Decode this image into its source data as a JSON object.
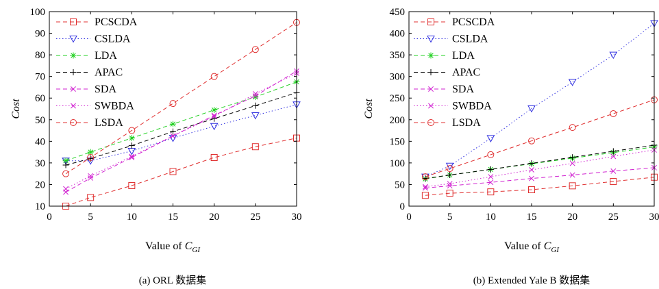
{
  "chart_data": [
    {
      "type": "line",
      "caption": "(a) ORL 数据集",
      "xlabel": "Value of ",
      "xlabel_sub": "GI",
      "xlabel_var": "C",
      "ylabel": "Cost",
      "xlim": [
        0,
        30
      ],
      "ylim": [
        10,
        100
      ],
      "xticks": [
        "0",
        "5",
        "10",
        "15",
        "20",
        "25",
        "30"
      ],
      "yticks": [
        "10",
        "20",
        "30",
        "40",
        "50",
        "60",
        "70",
        "80",
        "90",
        "100"
      ],
      "legend_position": "top-left",
      "x": [
        2,
        5,
        10,
        15,
        20,
        25,
        30
      ],
      "series": [
        {
          "name": "PCSCDA",
          "color": "#e03030",
          "dash": "6,4",
          "marker": "square",
          "values": [
            10,
            14,
            19.5,
            26,
            32.5,
            37.5,
            41.5
          ]
        },
        {
          "name": "CSLDA",
          "color": "#3030e0",
          "dash": "1.5,3",
          "marker": "triangle-down",
          "values": [
            31,
            31,
            35.5,
            41.5,
            47,
            52,
            57
          ]
        },
        {
          "name": "LDA",
          "color": "#20d020",
          "dash": "6,4",
          "marker": "star",
          "values": [
            31,
            35,
            41.5,
            48,
            54.5,
            60.5,
            67.5
          ]
        },
        {
          "name": "APAC",
          "color": "#000000",
          "dash": "6,4",
          "marker": "plus",
          "values": [
            29,
            32,
            38,
            44.5,
            50.5,
            56.5,
            62.5
          ]
        },
        {
          "name": "SDA",
          "color": "#d020d0",
          "dash": "6,4",
          "marker": "x",
          "values": [
            16.5,
            23,
            32.5,
            42.5,
            52,
            61,
            72.5
          ]
        },
        {
          "name": "SWBDA",
          "color": "#d020d0",
          "dash": "1.5,3",
          "marker": "x",
          "values": [
            18,
            24,
            33,
            42.5,
            51.5,
            62,
            71.5
          ]
        },
        {
          "name": "LSDA",
          "color": "#e03030",
          "dash": "6,4",
          "marker": "circle",
          "values": [
            25,
            32.5,
            45,
            57.5,
            70,
            82.5,
            95
          ]
        }
      ]
    },
    {
      "type": "line",
      "caption": "(b) Extended Yale B 数据集",
      "xlabel": "Value of ",
      "xlabel_sub": "GI",
      "xlabel_var": "C",
      "ylabel": "Cost",
      "xlim": [
        0,
        30
      ],
      "ylim": [
        0,
        450
      ],
      "xticks": [
        "0",
        "5",
        "10",
        "15",
        "20",
        "25",
        "30"
      ],
      "yticks": [
        "0",
        "50",
        "100",
        "150",
        "200",
        "250",
        "300",
        "350",
        "400",
        "450"
      ],
      "legend_position": "top-left",
      "x": [
        2,
        5,
        10,
        15,
        20,
        25,
        30
      ],
      "series": [
        {
          "name": "PCSCDA",
          "color": "#e03030",
          "dash": "6,4",
          "marker": "square",
          "values": [
            25,
            30,
            33,
            38,
            47,
            57,
            67
          ]
        },
        {
          "name": "CSLDA",
          "color": "#3030e0",
          "dash": "1.5,3",
          "marker": "triangle-down",
          "values": [
            68,
            93,
            157,
            226,
            287,
            350,
            423
          ]
        },
        {
          "name": "LDA",
          "color": "#20d020",
          "dash": "6,4",
          "marker": "star",
          "values": [
            63,
            72,
            85,
            98,
            111,
            124,
            137
          ]
        },
        {
          "name": "APAC",
          "color": "#000000",
          "dash": "6,4",
          "marker": "plus",
          "values": [
            64,
            72,
            85,
            99,
            113,
            127,
            141
          ]
        },
        {
          "name": "SDA",
          "color": "#d020d0",
          "dash": "6,4",
          "marker": "x",
          "values": [
            42,
            47,
            55,
            64,
            72,
            81,
            89
          ]
        },
        {
          "name": "SWBDA",
          "color": "#d020d0",
          "dash": "1.5,3",
          "marker": "x",
          "values": [
            45,
            52,
            68,
            84,
            99,
            115,
            130
          ]
        },
        {
          "name": "LSDA",
          "color": "#e03030",
          "dash": "6,4",
          "marker": "circle",
          "values": [
            68,
            87,
            119,
            151,
            182,
            214,
            246
          ]
        }
      ]
    }
  ]
}
